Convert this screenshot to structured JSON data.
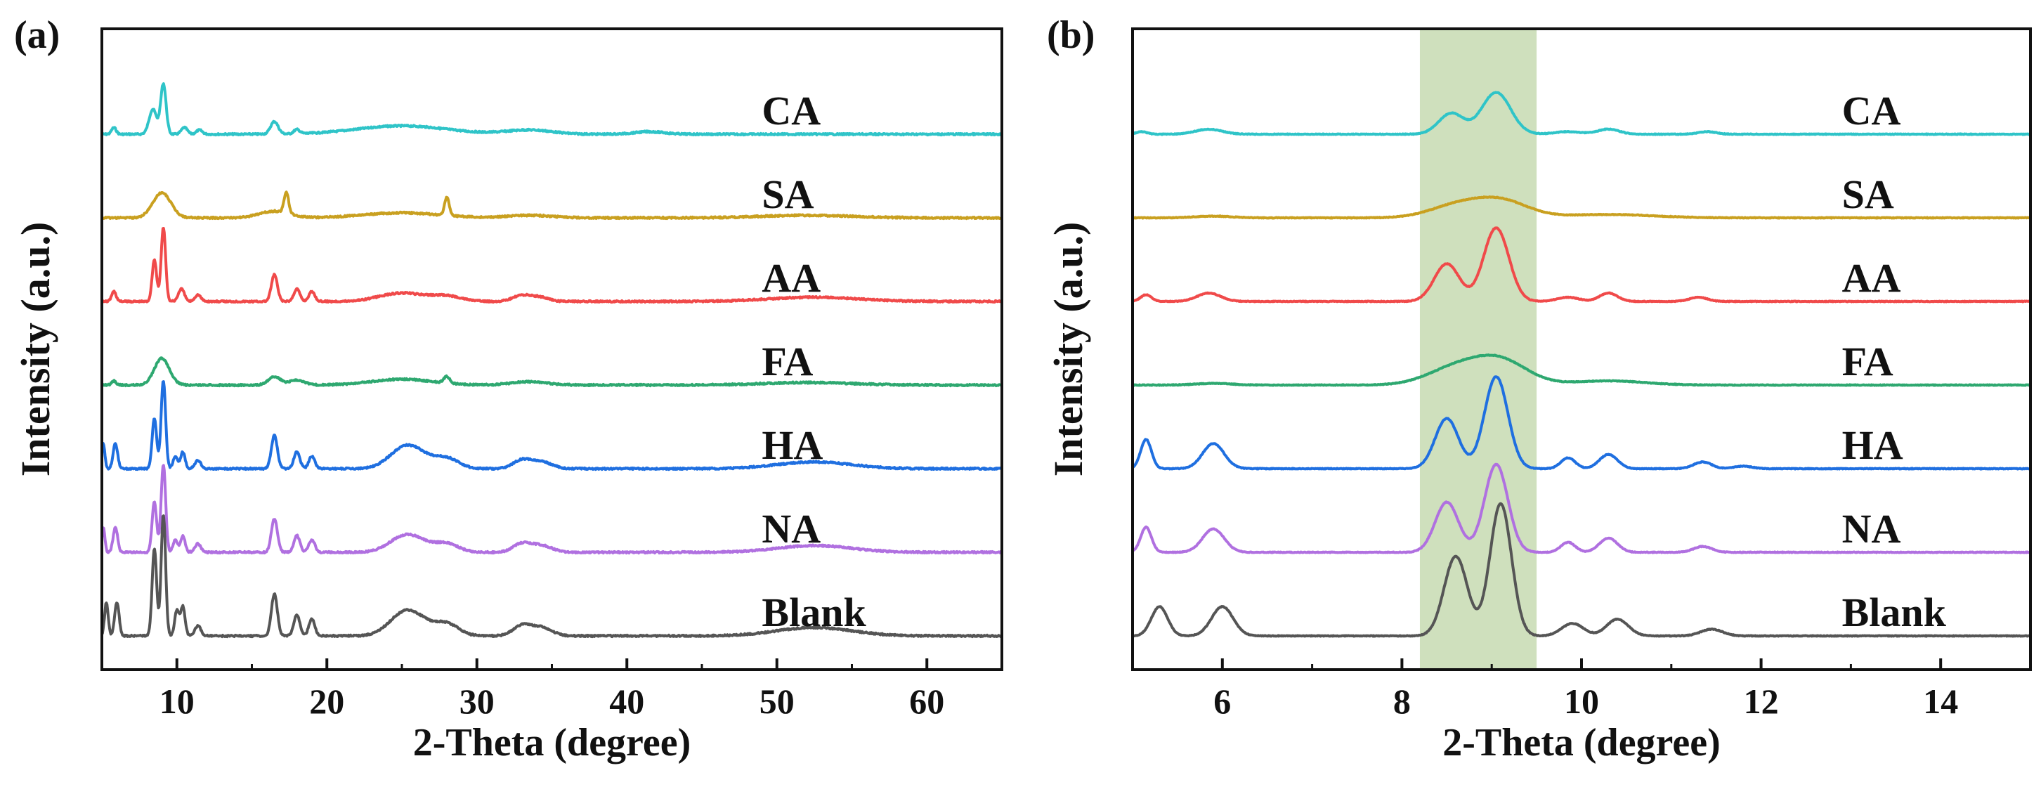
{
  "chart_data": [
    {
      "type": "line",
      "panel_label": "(a)",
      "xlabel": "2-Theta (degree)",
      "ylabel": "Intensity (a.u.)",
      "xlim": [
        5,
        65
      ],
      "xticks": [
        10,
        20,
        30,
        40,
        50,
        60
      ],
      "x_minor_step": 5,
      "yticks": false,
      "series_label_at_x": 49,
      "series": [
        {
          "name": "CA",
          "color": "#2fc4c8",
          "offset": 6,
          "peaks": [
            [
              5.8,
              0.08,
              0.15
            ],
            [
              8.4,
              0.3,
              0.25
            ],
            [
              9.1,
              0.6,
              0.18
            ],
            [
              10.5,
              0.08,
              0.2
            ],
            [
              11.5,
              0.05,
              0.2
            ],
            [
              16.5,
              0.15,
              0.25
            ],
            [
              18,
              0.05,
              0.2
            ],
            [
              25,
              0.1,
              3
            ],
            [
              33.5,
              0.05,
              1.5
            ],
            [
              41.5,
              0.03,
              1
            ]
          ]
        },
        {
          "name": "SA",
          "color": "#c9a020",
          "offset": 5,
          "peaks": [
            [
              9,
              0.3,
              0.6
            ],
            [
              16.5,
              0.08,
              1
            ],
            [
              17.3,
              0.25,
              0.15
            ],
            [
              25,
              0.06,
              2.5
            ],
            [
              28,
              0.22,
              0.15
            ],
            [
              33.5,
              0.03,
              1.5
            ],
            [
              52,
              0.03,
              3
            ]
          ]
        },
        {
          "name": "AA",
          "color": "#f04a4a",
          "offset": 4,
          "peaks": [
            [
              5.8,
              0.12,
              0.15
            ],
            [
              8.5,
              0.5,
              0.15
            ],
            [
              9.1,
              0.88,
              0.15
            ],
            [
              10.3,
              0.15,
              0.2
            ],
            [
              11.4,
              0.08,
              0.2
            ],
            [
              16.5,
              0.32,
              0.2
            ],
            [
              18,
              0.15,
              0.2
            ],
            [
              19,
              0.12,
              0.2
            ],
            [
              25,
              0.1,
              1.5
            ],
            [
              28,
              0.06,
              1
            ],
            [
              33,
              0.07,
              0.6
            ],
            [
              34.2,
              0.05,
              0.6
            ],
            [
              52.5,
              0.05,
              3
            ]
          ]
        },
        {
          "name": "FA",
          "color": "#2ea870",
          "offset": 3,
          "peaks": [
            [
              5.8,
              0.05,
              0.15
            ],
            [
              9,
              0.32,
              0.5
            ],
            [
              16.5,
              0.1,
              0.4
            ],
            [
              18,
              0.06,
              0.5
            ],
            [
              25,
              0.07,
              2
            ],
            [
              28,
              0.08,
              0.2
            ],
            [
              33.5,
              0.04,
              1.2
            ],
            [
              52,
              0.03,
              3
            ]
          ]
        },
        {
          "name": "HA",
          "color": "#1f6fe0",
          "offset": 2,
          "peaks": [
            [
              5.1,
              0.3,
              0.1
            ],
            [
              5.9,
              0.3,
              0.15
            ],
            [
              8.5,
              0.6,
              0.15
            ],
            [
              9.1,
              1.05,
              0.15
            ],
            [
              9.9,
              0.15,
              0.15
            ],
            [
              10.4,
              0.2,
              0.15
            ],
            [
              11.4,
              0.1,
              0.2
            ],
            [
              16.5,
              0.4,
              0.2
            ],
            [
              18,
              0.2,
              0.2
            ],
            [
              19,
              0.15,
              0.2
            ],
            [
              25,
              0.18,
              1
            ],
            [
              26,
              0.14,
              1
            ],
            [
              28,
              0.12,
              0.8
            ],
            [
              33,
              0.1,
              0.6
            ],
            [
              34.3,
              0.08,
              0.7
            ],
            [
              52.5,
              0.08,
              2.5
            ]
          ]
        },
        {
          "name": "NA",
          "color": "#b070e0",
          "offset": 1,
          "peaks": [
            [
              5.1,
              0.3,
              0.1
            ],
            [
              5.9,
              0.3,
              0.15
            ],
            [
              8.5,
              0.6,
              0.15
            ],
            [
              9.1,
              1.05,
              0.15
            ],
            [
              9.9,
              0.15,
              0.15
            ],
            [
              10.4,
              0.2,
              0.15
            ],
            [
              11.4,
              0.1,
              0.2
            ],
            [
              16.5,
              0.4,
              0.2
            ],
            [
              18,
              0.2,
              0.2
            ],
            [
              19,
              0.15,
              0.2
            ],
            [
              25,
              0.14,
              1
            ],
            [
              26,
              0.1,
              1
            ],
            [
              28,
              0.1,
              0.8
            ],
            [
              33,
              0.1,
              0.6
            ],
            [
              34.3,
              0.08,
              0.7
            ],
            [
              52.5,
              0.08,
              2.5
            ]
          ]
        },
        {
          "name": "Blank",
          "color": "#555555",
          "offset": 0,
          "peaks": [
            [
              5.3,
              0.4,
              0.12
            ],
            [
              6,
              0.4,
              0.15
            ],
            [
              8.5,
              1.05,
              0.15
            ],
            [
              9.1,
              1.45,
              0.15
            ],
            [
              10,
              0.3,
              0.15
            ],
            [
              10.4,
              0.35,
              0.15
            ],
            [
              11.4,
              0.12,
              0.2
            ],
            [
              16.5,
              0.5,
              0.2
            ],
            [
              18,
              0.25,
              0.2
            ],
            [
              19,
              0.2,
              0.2
            ],
            [
              25,
              0.2,
              1
            ],
            [
              26,
              0.15,
              1
            ],
            [
              28,
              0.14,
              0.8
            ],
            [
              33,
              0.12,
              0.6
            ],
            [
              34.3,
              0.1,
              0.7
            ],
            [
              52.5,
              0.1,
              2.5
            ]
          ]
        }
      ]
    },
    {
      "type": "line",
      "panel_label": "(b)",
      "xlabel": "2-Theta (degree)",
      "ylabel": "Intensity (a.u.)",
      "xlim": [
        5,
        15
      ],
      "xticks": [
        6,
        8,
        10,
        12,
        14
      ],
      "x_minor_step": 1,
      "yticks": false,
      "highlight_band": {
        "x": [
          8.2,
          9.5
        ],
        "color": "#cfe0bd"
      },
      "series_label_at_x": 12.9,
      "series": [
        {
          "name": "CA",
          "color": "#2fc4c8",
          "offset": 6,
          "peaks": [
            [
              5.1,
              0.03,
              0.06
            ],
            [
              5.85,
              0.06,
              0.15
            ],
            [
              8.55,
              0.25,
              0.14
            ],
            [
              9.05,
              0.5,
              0.16
            ],
            [
              9.85,
              0.03,
              0.15
            ],
            [
              10.3,
              0.06,
              0.12
            ],
            [
              11.4,
              0.03,
              0.1
            ]
          ]
        },
        {
          "name": "SA",
          "color": "#c9a020",
          "offset": 5,
          "peaks": [
            [
              8.6,
              0.14,
              0.3
            ],
            [
              9.1,
              0.2,
              0.3
            ],
            [
              10.3,
              0.04,
              0.5
            ],
            [
              5.9,
              0.02,
              0.2
            ]
          ]
        },
        {
          "name": "AA",
          "color": "#f04a4a",
          "offset": 4,
          "peaks": [
            [
              5.15,
              0.08,
              0.06
            ],
            [
              5.85,
              0.1,
              0.13
            ],
            [
              8.5,
              0.45,
              0.14
            ],
            [
              9.05,
              0.88,
              0.14
            ],
            [
              9.85,
              0.05,
              0.12
            ],
            [
              10.3,
              0.1,
              0.1
            ],
            [
              11.3,
              0.05,
              0.1
            ]
          ]
        },
        {
          "name": "FA",
          "color": "#2ea870",
          "offset": 3,
          "peaks": [
            [
              8.6,
              0.2,
              0.32
            ],
            [
              9.1,
              0.28,
              0.3
            ],
            [
              10.3,
              0.05,
              0.4
            ],
            [
              5.9,
              0.02,
              0.2
            ]
          ]
        },
        {
          "name": "HA",
          "color": "#1f6fe0",
          "offset": 2,
          "peaks": [
            [
              5.15,
              0.35,
              0.06
            ],
            [
              5.9,
              0.3,
              0.12
            ],
            [
              8.5,
              0.6,
              0.13
            ],
            [
              9.05,
              1.1,
              0.13
            ],
            [
              9.85,
              0.13,
              0.08
            ],
            [
              10.3,
              0.17,
              0.1
            ],
            [
              11.35,
              0.08,
              0.1
            ],
            [
              11.8,
              0.03,
              0.1
            ]
          ]
        },
        {
          "name": "NA",
          "color": "#b070e0",
          "offset": 1,
          "peaks": [
            [
              5.15,
              0.3,
              0.06
            ],
            [
              5.9,
              0.28,
              0.12
            ],
            [
              8.5,
              0.6,
              0.13
            ],
            [
              9.05,
              1.05,
              0.13
            ],
            [
              9.85,
              0.12,
              0.08
            ],
            [
              10.3,
              0.17,
              0.1
            ],
            [
              11.35,
              0.07,
              0.1
            ]
          ]
        },
        {
          "name": "Blank",
          "color": "#555555",
          "offset": 0,
          "peaks": [
            [
              5.3,
              0.35,
              0.09
            ],
            [
              6,
              0.35,
              0.12
            ],
            [
              8.6,
              0.95,
              0.13
            ],
            [
              9.1,
              1.58,
              0.12
            ],
            [
              9.9,
              0.15,
              0.12
            ],
            [
              10.4,
              0.2,
              0.12
            ],
            [
              11.45,
              0.08,
              0.12
            ]
          ]
        }
      ]
    }
  ]
}
